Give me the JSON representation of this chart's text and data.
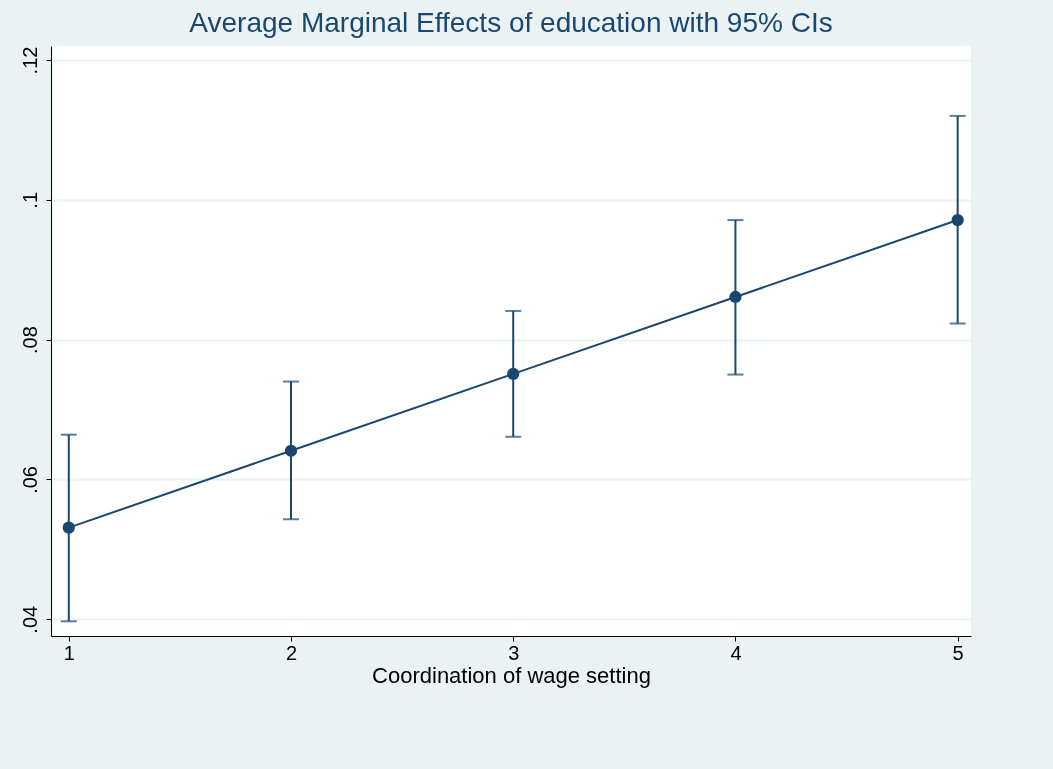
{
  "chart_data": {
    "type": "line",
    "title": "Average Marginal Effects of education with 95% CIs",
    "xlabel": "Coordination of wage setting",
    "x": [
      1,
      2,
      3,
      4,
      5
    ],
    "series": [
      {
        "color": "#1a476f",
        "values": [
          0.0531,
          0.0641,
          0.0751,
          0.0861,
          0.0971
        ],
        "errors": [
          [
            0.0397,
            0.0664
          ],
          [
            0.0543,
            0.074
          ],
          [
            0.0661,
            0.0841
          ],
          [
            0.075,
            0.0971
          ],
          [
            0.0823,
            0.112
          ]
        ]
      }
    ],
    "xlim": [
      0.92,
      5.06
    ],
    "xticks": [
      1,
      2,
      3,
      4,
      5
    ],
    "ylim": [
      0.0376,
      0.122
    ],
    "yticks": [
      {
        "value": 0.04,
        "label": ".04"
      },
      {
        "value": 0.06,
        "label": ".06"
      },
      {
        "value": 0.08,
        "label": ".08"
      },
      {
        "value": 0.1,
        "label": ".1"
      },
      {
        "value": 0.12,
        "label": ".12"
      }
    ],
    "grid": "y",
    "marker": "circle",
    "line_style": "solid"
  }
}
